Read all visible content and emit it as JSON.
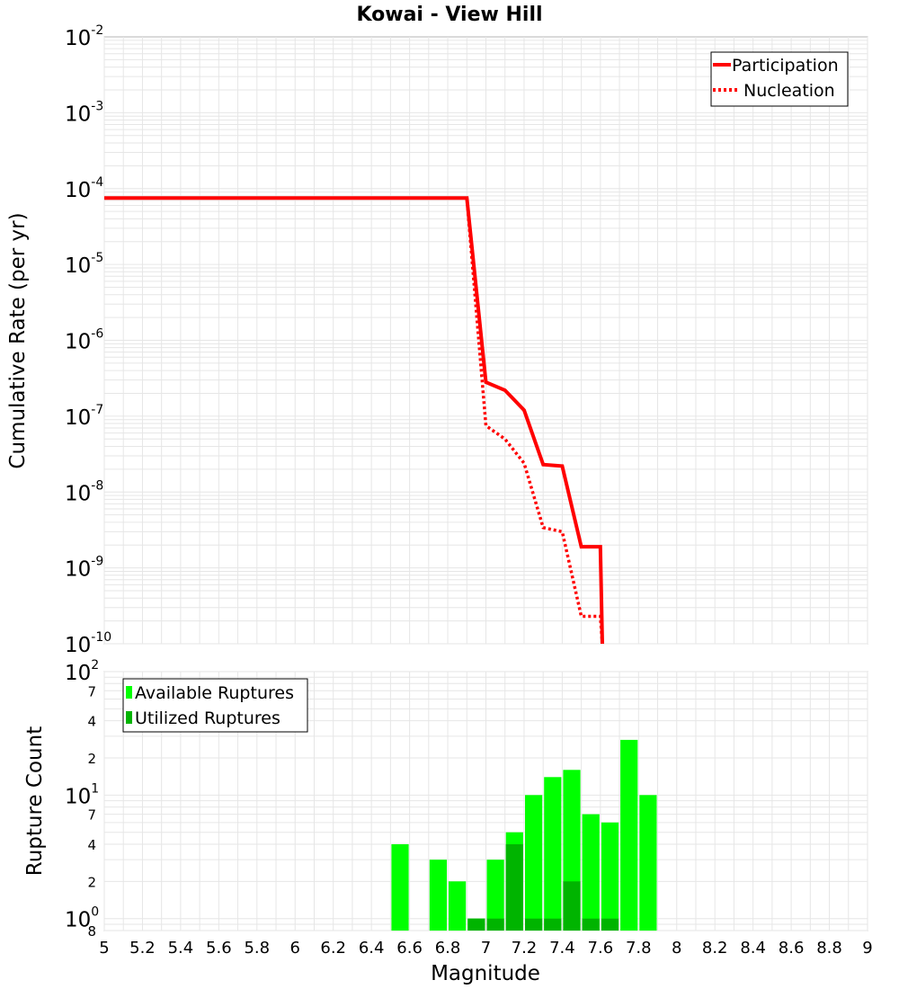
{
  "title": "Kowai - View Hill",
  "colors": {
    "participation": "#ff0000",
    "nucleation": "#ff0000",
    "available": "#00ff00",
    "utilized": "#00b400",
    "grid": "#e6e6e6"
  },
  "x_axis": {
    "label": "Magnitude",
    "range": [
      5,
      9
    ],
    "ticks": [
      "5",
      "5.2",
      "5.4",
      "5.6",
      "5.8",
      "6",
      "6.2",
      "6.4",
      "6.6",
      "6.8",
      "7",
      "7.2",
      "7.4",
      "7.6",
      "7.8",
      "8",
      "8.2",
      "8.4",
      "8.6",
      "8.8",
      "9"
    ]
  },
  "chart_data": [
    {
      "type": "line",
      "title": "Kowai - View Hill",
      "ylabel": "Cumulative Rate (per yr)",
      "yscale": "log",
      "ylim": [
        1e-10,
        0.01
      ],
      "yticks": [
        {
          "base": "10",
          "exp": "-2"
        },
        {
          "base": "10",
          "exp": "-3"
        },
        {
          "base": "10",
          "exp": "-4"
        },
        {
          "base": "10",
          "exp": "-5"
        },
        {
          "base": "10",
          "exp": "-6"
        },
        {
          "base": "10",
          "exp": "-7"
        },
        {
          "base": "10",
          "exp": "-8"
        },
        {
          "base": "10",
          "exp": "-9"
        },
        {
          "base": "10",
          "exp": "-10"
        }
      ],
      "legend": "top-right",
      "grid": true,
      "series": [
        {
          "name": "Participation",
          "style": "solid",
          "x": [
            5.0,
            6.9,
            7.0,
            7.1,
            7.2,
            7.3,
            7.4,
            7.5,
            7.6,
            7.61
          ],
          "y": [
            7.5e-05,
            7.5e-05,
            2.8e-07,
            2.2e-07,
            1.2e-07,
            2.3e-08,
            2.2e-08,
            1.9e-09,
            1.9e-09,
            1e-10
          ]
        },
        {
          "name": "Nucleation",
          "style": "dotted",
          "x": [
            5.0,
            6.9,
            7.0,
            7.1,
            7.2,
            7.3,
            7.4,
            7.5,
            7.6,
            7.61
          ],
          "y": [
            7.5e-05,
            7.5e-05,
            7.5e-08,
            5e-08,
            2.4e-08,
            3.4e-09,
            3e-09,
            2.3e-10,
            2.3e-10,
            1e-10
          ]
        }
      ]
    },
    {
      "type": "bar",
      "ylabel": "Rupture Count",
      "yscale": "log",
      "ylim": [
        0.8,
        100
      ],
      "yticks": [
        {
          "base": "10",
          "exp": "2"
        },
        {
          "base": "10",
          "exp": "1"
        },
        {
          "base": "10",
          "exp": "0"
        }
      ],
      "yminor": [
        "7",
        "4",
        "2",
        "7",
        "4",
        "2",
        "8"
      ],
      "legend": "top-left",
      "grid": true,
      "series": [
        {
          "name": "Available Ruptures",
          "x": [
            6.55,
            6.75,
            6.85,
            6.95,
            7.05,
            7.15,
            7.25,
            7.35,
            7.45,
            7.55,
            7.65,
            7.75,
            7.85
          ],
          "values": [
            4,
            3,
            2,
            1,
            3,
            5,
            10,
            14,
            16,
            7,
            6,
            28,
            10
          ]
        },
        {
          "name": "Utilized Ruptures",
          "x": [
            6.95,
            7.05,
            7.15,
            7.25,
            7.35,
            7.45,
            7.55,
            7.65
          ],
          "values": [
            1,
            1,
            4,
            1,
            1,
            2,
            1,
            1
          ]
        }
      ]
    }
  ]
}
